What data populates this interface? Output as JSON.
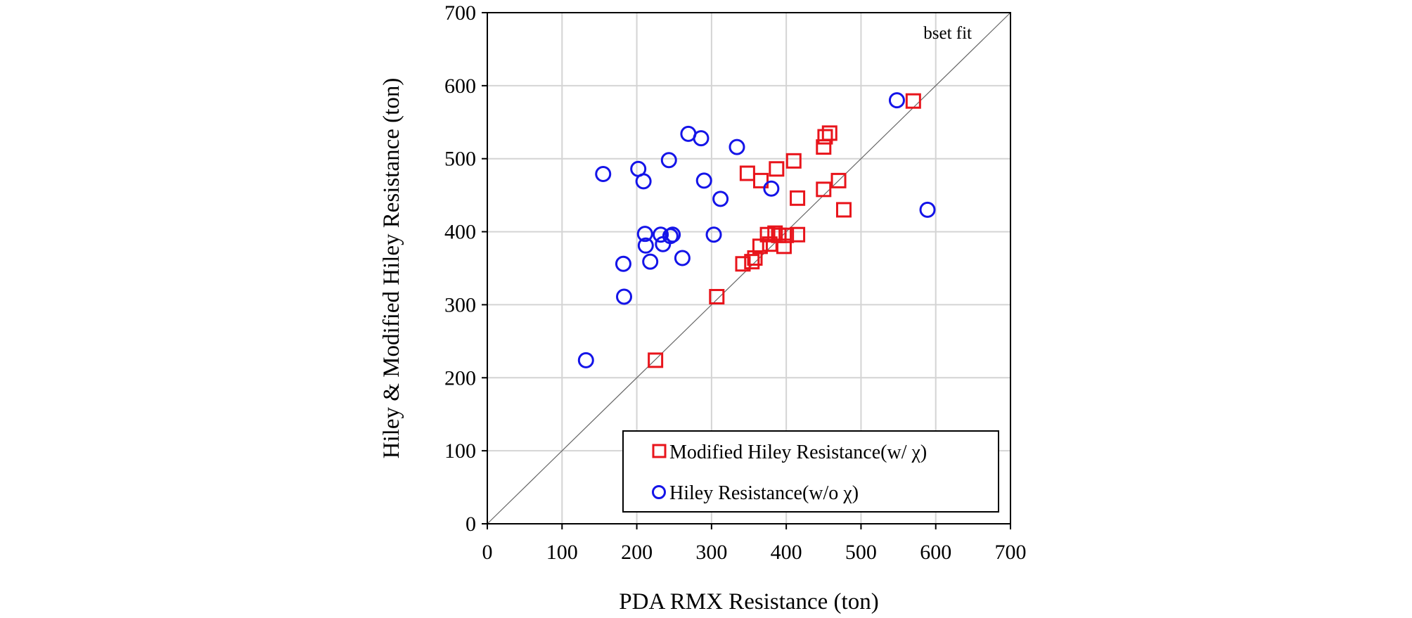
{
  "chart_data": {
    "type": "scatter",
    "xlabel": "PDA RMX Resistance (ton)",
    "ylabel": "Hiley & Modified Hiley Resistance (ton)",
    "xlim": [
      0,
      700
    ],
    "ylim": [
      0,
      700
    ],
    "xticks": [
      0,
      100,
      200,
      300,
      400,
      500,
      600,
      700
    ],
    "yticks": [
      0,
      100,
      200,
      300,
      400,
      500,
      600,
      700
    ],
    "grid": true,
    "legend_position": "bottom-right",
    "annotation": "bset fit",
    "reference_line": {
      "x": [
        0,
        700
      ],
      "y": [
        0,
        700
      ]
    },
    "series": [
      {
        "name": "Modified Hiley Resistance(w/ χ)",
        "marker": "square",
        "color": "#e8141b",
        "points": [
          [
            225,
            224
          ],
          [
            307,
            311
          ],
          [
            342,
            356
          ],
          [
            354,
            359
          ],
          [
            358,
            364
          ],
          [
            365,
            380
          ],
          [
            378,
            383
          ],
          [
            375,
            396
          ],
          [
            385,
            398
          ],
          [
            390,
            395
          ],
          [
            397,
            380
          ],
          [
            400,
            395
          ],
          [
            415,
            396
          ],
          [
            348,
            480
          ],
          [
            366,
            470
          ],
          [
            387,
            486
          ],
          [
            410,
            497
          ],
          [
            415,
            446
          ],
          [
            450,
            458
          ],
          [
            470,
            470
          ],
          [
            477,
            430
          ],
          [
            450,
            516
          ],
          [
            452,
            530
          ],
          [
            458,
            535
          ],
          [
            570,
            579
          ]
        ]
      },
      {
        "name": "Hiley Resistance(w/o χ)",
        "marker": "circle",
        "color": "#1414e8",
        "points": [
          [
            132,
            224
          ],
          [
            183,
            311
          ],
          [
            182,
            356
          ],
          [
            218,
            359
          ],
          [
            212,
            381
          ],
          [
            211,
            397
          ],
          [
            232,
            396
          ],
          [
            235,
            383
          ],
          [
            245,
            394
          ],
          [
            248,
            396
          ],
          [
            261,
            364
          ],
          [
            303,
            396
          ],
          [
            155,
            479
          ],
          [
            202,
            486
          ],
          [
            209,
            469
          ],
          [
            243,
            498
          ],
          [
            269,
            534
          ],
          [
            286,
            528
          ],
          [
            290,
            470
          ],
          [
            312,
            445
          ],
          [
            334,
            516
          ],
          [
            380,
            459
          ],
          [
            548,
            580
          ],
          [
            589,
            430
          ]
        ]
      }
    ]
  }
}
